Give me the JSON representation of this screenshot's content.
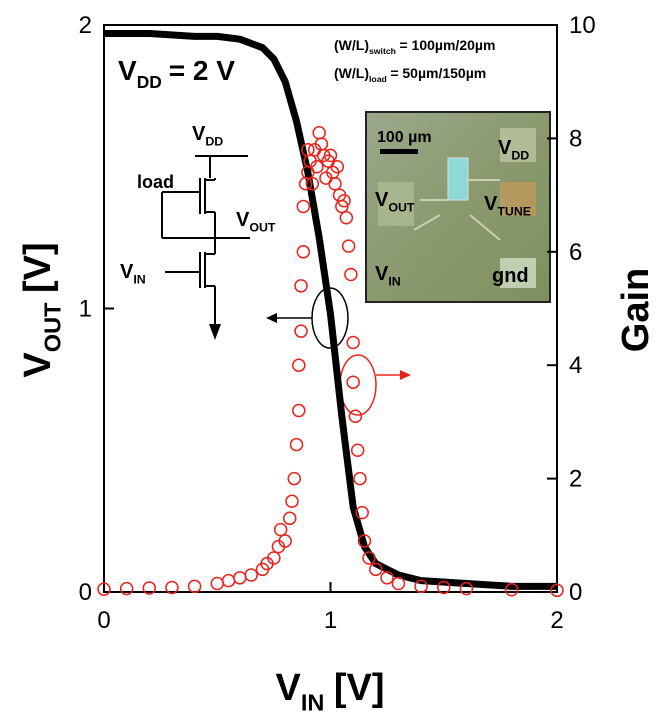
{
  "chart_data": {
    "type": "line-scatter",
    "x_label": {
      "text": "V",
      "sub": "IN",
      "suffix": "[V]"
    },
    "y_label": {
      "text": "V",
      "sub": "OUT",
      "suffix": "[V]"
    },
    "y2_label": "Gain",
    "annotations": [
      {
        "text": "V",
        "sub": "DD",
        "suffix": "= 2 V"
      },
      {
        "text": "(W/L)",
        "sub": "switch",
        "suffix": "= 100µm/20µm"
      },
      {
        "text": "(W/L)",
        "sub": "load",
        "suffix": "= 50µm/150µm"
      }
    ],
    "xlim": [
      0,
      2
    ],
    "xticks": [
      0,
      1,
      2
    ],
    "ylim": [
      0,
      2
    ],
    "yticks": [
      0,
      1,
      2
    ],
    "y2lim": [
      0,
      10
    ],
    "y2ticks": [
      0,
      2,
      4,
      6,
      8,
      10
    ],
    "series": [
      {
        "type": "line",
        "color": "#000000",
        "x": [
          0,
          0.2,
          0.4,
          0.5,
          0.6,
          0.7,
          0.75,
          0.8,
          0.85,
          0.9,
          0.95,
          1.0,
          1.05,
          1.1,
          1.15,
          1.2,
          1.3,
          1.4,
          1.6,
          1.8,
          2.0
        ],
        "values": [
          1.97,
          1.97,
          1.96,
          1.96,
          1.95,
          1.92,
          1.88,
          1.8,
          1.66,
          1.48,
          1.25,
          0.98,
          0.62,
          0.3,
          0.16,
          0.1,
          0.06,
          0.04,
          0.03,
          0.02,
          0.02
        ]
      },
      {
        "type": "scatter",
        "color": "#e8231c",
        "axis": "y2",
        "x": [
          0.0,
          0.1,
          0.2,
          0.3,
          0.4,
          0.5,
          0.55,
          0.6,
          0.65,
          0.7,
          0.72,
          0.75,
          0.77,
          0.78,
          0.8,
          0.82,
          0.83,
          0.84,
          0.85,
          0.86,
          0.86,
          0.87,
          0.87,
          0.88,
          0.88,
          0.89,
          0.9,
          0.9,
          0.91,
          0.92,
          0.93,
          0.94,
          0.95,
          0.96,
          0.97,
          0.98,
          0.99,
          1.0,
          1.01,
          1.02,
          1.03,
          1.04,
          1.05,
          1.06,
          1.07,
          1.08,
          1.09,
          1.1,
          1.1,
          1.11,
          1.12,
          1.13,
          1.14,
          1.15,
          1.17,
          1.2,
          1.25,
          1.3,
          1.4,
          1.5,
          1.6,
          1.8,
          2.0
        ],
        "values": [
          0.05,
          0.06,
          0.07,
          0.08,
          0.1,
          0.15,
          0.2,
          0.25,
          0.3,
          0.4,
          0.5,
          0.6,
          0.8,
          1.1,
          0.9,
          1.3,
          1.6,
          2.0,
          2.6,
          3.2,
          4.0,
          4.6,
          5.4,
          6.0,
          6.8,
          7.2,
          7.4,
          7.8,
          7.6,
          7.2,
          7.8,
          7.5,
          8.1,
          7.9,
          7.7,
          7.3,
          7.6,
          7.7,
          7.4,
          7.2,
          7.5,
          7.0,
          6.8,
          6.9,
          6.6,
          6.1,
          5.6,
          4.4,
          3.7,
          3.1,
          2.5,
          2.0,
          1.4,
          0.9,
          0.6,
          0.4,
          0.25,
          0.15,
          0.1,
          0.08,
          0.06,
          0.04,
          0.03
        ]
      }
    ]
  },
  "circuit": {
    "vdd": {
      "text": "V",
      "sub": "DD"
    },
    "load": "load",
    "vout": {
      "text": "V",
      "sub": "OUT"
    },
    "vin": {
      "text": "V",
      "sub": "IN"
    }
  },
  "micrograph": {
    "scale": "100 µm",
    "vdd": {
      "text": "V",
      "sub": "DD"
    },
    "vout": {
      "text": "V",
      "sub": "OUT"
    },
    "vtune": {
      "text": "V",
      "sub": "TUNE"
    },
    "vin": {
      "text": "V",
      "sub": "IN"
    },
    "gnd": "gnd"
  }
}
